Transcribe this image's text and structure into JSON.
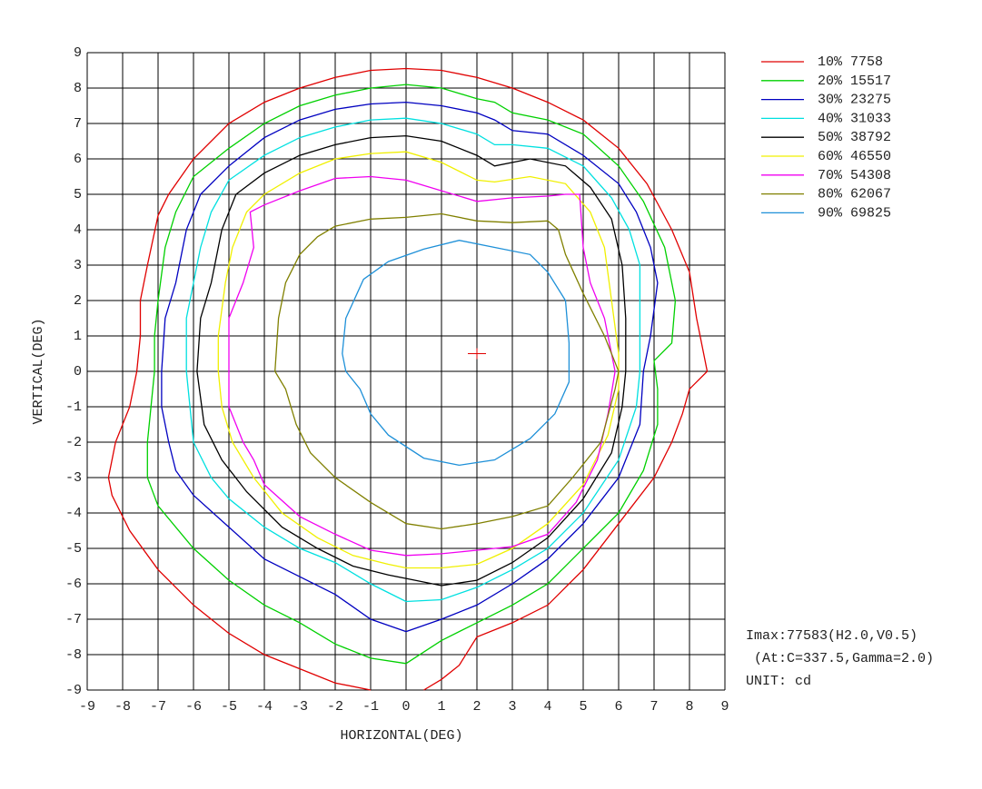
{
  "chart_data": {
    "type": "contour",
    "xlabel": "HORIZONTAL(DEG)",
    "ylabel": "VERTICAL(DEG)",
    "xlim": [
      -9,
      9
    ],
    "ylim": [
      -9,
      9
    ],
    "xticks": [
      -9,
      -8,
      -7,
      -6,
      -5,
      -4,
      -3,
      -2,
      -1,
      0,
      1,
      2,
      3,
      4,
      5,
      6,
      7,
      8,
      9
    ],
    "yticks": [
      -9,
      -8,
      -7,
      -6,
      -5,
      -4,
      -3,
      -2,
      -1,
      0,
      1,
      2,
      3,
      4,
      5,
      6,
      7,
      8,
      9
    ],
    "grid": true,
    "marker": {
      "x": 2,
      "y": 0.5,
      "color": "#e00000"
    },
    "annotations": [
      "Imax:77583(H2.0,V0.5)",
      " (At:C=337.5,Gamma=2.0)",
      "UNIT: cd"
    ],
    "series": [
      {
        "name": "10% 7758",
        "color": "#e00000",
        "x": [
          0.5,
          1,
          1.5,
          2,
          3,
          4,
          5,
          6,
          7,
          7.5,
          7.8,
          8,
          8.5,
          8.2,
          8,
          7.5,
          6.8,
          6,
          5,
          4,
          3,
          2,
          1,
          0,
          -1,
          -2,
          -3,
          -4,
          -5,
          -6,
          -6.7,
          -7,
          -7.3,
          -7.5,
          -7.5,
          -7.6,
          -7.8,
          -8.2,
          -8.4,
          -8.3,
          -7.8,
          -7,
          -6,
          -5,
          -4,
          -3,
          -2,
          -1
        ],
        "y": [
          -9,
          -8.7,
          -8.3,
          -7.5,
          -7.1,
          -6.6,
          -5.6,
          -4.3,
          -3,
          -2,
          -1.2,
          -0.5,
          0,
          1.5,
          2.8,
          4,
          5.3,
          6.3,
          7.1,
          7.6,
          8,
          8.3,
          8.5,
          8.55,
          8.5,
          8.3,
          8,
          7.6,
          7,
          6,
          5,
          4.4,
          3,
          2,
          1,
          0,
          -1,
          -2,
          -3,
          -3.5,
          -4.5,
          -5.6,
          -6.6,
          -7.4,
          -8,
          -8.4,
          -8.8,
          -9
        ]
      },
      {
        "name": "20% 15517",
        "color": "#00d000",
        "x": [
          0,
          1,
          2,
          3,
          4,
          5,
          6,
          6.7,
          7.1,
          7.1,
          7,
          7.5,
          7.6,
          7.3,
          6.7,
          6,
          5,
          4,
          3,
          2.5,
          2,
          1,
          0,
          -1,
          -2,
          -3,
          -4,
          -5,
          -6,
          -6.5,
          -6.8,
          -7,
          -7.1,
          -7.1,
          -7.2,
          -7.3,
          -7.3,
          -7,
          -6,
          -5,
          -4,
          -3,
          -2,
          -1,
          0
        ],
        "y": [
          -8.25,
          -7.6,
          -7.1,
          -6.6,
          -6,
          -5,
          -4,
          -2.8,
          -1.5,
          -0.5,
          0.3,
          0.8,
          2,
          3.5,
          4.8,
          5.8,
          6.7,
          7.1,
          7.3,
          7.6,
          7.7,
          8,
          8.1,
          8,
          7.8,
          7.5,
          7,
          6.3,
          5.5,
          4.5,
          3.5,
          2,
          1,
          0,
          -1,
          -2,
          -3,
          -3.8,
          -5,
          -5.9,
          -6.6,
          -7.1,
          -7.7,
          -8.1,
          -8.25
        ]
      },
      {
        "name": "30% 23275",
        "color": "#0000c0",
        "x": [
          0,
          1,
          2,
          3,
          4,
          5,
          6,
          6.6,
          6.7,
          6.9,
          7.1,
          6.9,
          6.5,
          6,
          5,
          4,
          3,
          2.5,
          2,
          1,
          0,
          -1,
          -2,
          -3,
          -4,
          -5,
          -5.8,
          -6.2,
          -6.5,
          -6.8,
          -6.9,
          -6.9,
          -6.7,
          -6.5,
          -6,
          -5,
          -4,
          -3,
          -2,
          -1,
          0
        ],
        "y": [
          -7.35,
          -7,
          -6.6,
          -6,
          -5.3,
          -4.3,
          -3,
          -1.5,
          0,
          1,
          2.5,
          3.5,
          4.5,
          5.3,
          6.1,
          6.7,
          6.8,
          7.1,
          7.3,
          7.5,
          7.6,
          7.55,
          7.4,
          7.1,
          6.6,
          5.8,
          5,
          4,
          2.5,
          1.5,
          0,
          -1,
          -2,
          -2.8,
          -3.5,
          -4.4,
          -5.3,
          -5.8,
          -6.3,
          -7,
          -7.35
        ]
      },
      {
        "name": "40% 31033",
        "color": "#00e0e0",
        "x": [
          0,
          1,
          2,
          3,
          4,
          5,
          6,
          6.5,
          6.6,
          6.6,
          6.6,
          6.3,
          5.8,
          5,
          4,
          3,
          2.5,
          2,
          1,
          0,
          -1,
          -2,
          -3,
          -4,
          -5,
          -5.5,
          -5.8,
          -6,
          -6.2,
          -6.2,
          -6.1,
          -6,
          -5.5,
          -5,
          -4,
          -3,
          -2,
          -1,
          0
        ],
        "y": [
          -6.5,
          -6.45,
          -6.1,
          -5.6,
          -5,
          -4,
          -2.5,
          -1,
          0,
          2,
          3,
          4,
          4.9,
          5.8,
          6.3,
          6.4,
          6.4,
          6.7,
          7,
          7.15,
          7.1,
          6.9,
          6.6,
          6.1,
          5.4,
          4.5,
          3.5,
          2.5,
          1.5,
          0,
          -1,
          -2,
          -3,
          -3.6,
          -4.4,
          -5,
          -5.4,
          -6,
          -6.5
        ]
      },
      {
        "name": "50% 38792",
        "color": "#000000",
        "x": [
          0,
          1,
          2,
          3,
          4,
          5,
          5.8,
          6.1,
          6.2,
          6.2,
          6.1,
          5.8,
          5.2,
          4.5,
          3.5,
          2.5,
          2,
          1,
          0,
          -1,
          -2,
          -3,
          -4,
          -4.8,
          -5.2,
          -5.5,
          -5.8,
          -5.9,
          -5.7,
          -5.2,
          -4.5,
          -3.5,
          -2.5,
          -1.5,
          -0.5,
          0
        ],
        "y": [
          -5.85,
          -6.05,
          -5.9,
          -5.4,
          -4.7,
          -3.6,
          -2.3,
          -1,
          0,
          1.5,
          3,
          4.3,
          5.2,
          5.8,
          6,
          5.8,
          6.1,
          6.5,
          6.65,
          6.6,
          6.4,
          6.1,
          5.6,
          5,
          4,
          2.5,
          1.5,
          0,
          -1.5,
          -2.5,
          -3.4,
          -4.4,
          -5,
          -5.5,
          -5.75,
          -5.85
        ]
      },
      {
        "name": "60% 46550",
        "color": "#f0f000",
        "x": [
          0,
          1,
          2,
          3,
          4,
          5,
          5.7,
          6,
          6,
          5.8,
          5.6,
          5.2,
          4.5,
          3.5,
          2.5,
          2,
          1,
          0,
          -1,
          -2,
          -3,
          -4,
          -4.5,
          -4.9,
          -5.1,
          -5.3,
          -5.3,
          -5.2,
          -4.9,
          -4.3,
          -3.5,
          -2.5,
          -1.5,
          -0.5,
          0
        ],
        "y": [
          -5.55,
          -5.55,
          -5.45,
          -5,
          -4.3,
          -3.2,
          -1.8,
          -0.5,
          0.5,
          2,
          3.5,
          4.5,
          5.3,
          5.5,
          5.35,
          5.4,
          5.9,
          6.2,
          6.15,
          6,
          5.6,
          5,
          4.5,
          3.5,
          2.5,
          1,
          0,
          -1,
          -2,
          -3,
          -4,
          -4.7,
          -5.2,
          -5.45,
          -5.55
        ]
      },
      {
        "name": "70% 54308",
        "color": "#f000f0",
        "x": [
          0,
          1,
          2,
          3,
          4,
          4.8,
          5.4,
          5.7,
          5.9,
          5.6,
          5.2,
          5,
          4.9,
          4.5,
          4,
          3,
          2,
          1,
          0,
          -1,
          -2,
          -3,
          -4,
          -4.4,
          -4.3,
          -4.6,
          -5,
          -5,
          -5,
          -4.6,
          -4.3,
          -4,
          -3,
          -2,
          -1,
          0
        ],
        "y": [
          -5.2,
          -5.15,
          -5.05,
          -4.95,
          -4.6,
          -3.7,
          -2.5,
          -1.2,
          0,
          1.5,
          2.5,
          3.5,
          5,
          5,
          4.95,
          4.9,
          4.8,
          5.1,
          5.4,
          5.5,
          5.45,
          5.1,
          4.7,
          4.5,
          3.5,
          2.5,
          1.5,
          0,
          -1,
          -2,
          -2.5,
          -3.2,
          -4.1,
          -4.6,
          -5.05,
          -5.2
        ]
      },
      {
        "name": "80% 62067",
        "color": "#808000",
        "x": [
          0,
          1,
          2,
          3,
          4,
          4.7,
          5.5,
          5.9,
          6,
          5.6,
          5,
          4.5,
          4.3,
          4,
          3,
          2,
          1,
          0,
          -1,
          -2,
          -2.5,
          -3,
          -3.4,
          -3.6,
          -3.7,
          -3.4,
          -3.1,
          -2.7,
          -2,
          -1,
          0
        ],
        "y": [
          -4.3,
          -4.45,
          -4.3,
          -4.1,
          -3.8,
          -3,
          -2,
          -0.5,
          0,
          1,
          2.2,
          3.3,
          4,
          4.25,
          4.2,
          4.25,
          4.45,
          4.35,
          4.3,
          4.1,
          3.8,
          3.3,
          2.5,
          1.5,
          0,
          -0.5,
          -1.5,
          -2.3,
          -3,
          -3.7,
          -4.3
        ]
      },
      {
        "name": "90% 69825",
        "color": "#1e90d8",
        "x": [
          1.5,
          2.5,
          3.5,
          4.2,
          4.6,
          4.6,
          4.5,
          4,
          3.5,
          2.5,
          1.5,
          0.5,
          -0.5,
          -1.2,
          -1.7,
          -1.8,
          -1.7,
          -1.3,
          -1,
          -0.5,
          0.5,
          1.5
        ],
        "y": [
          -2.65,
          -2.5,
          -1.9,
          -1.2,
          -0.3,
          0.8,
          2,
          2.8,
          3.3,
          3.5,
          3.7,
          3.45,
          3.1,
          2.6,
          1.5,
          0.5,
          0,
          -0.5,
          -1.2,
          -1.8,
          -2.45,
          -2.65
        ]
      }
    ]
  }
}
